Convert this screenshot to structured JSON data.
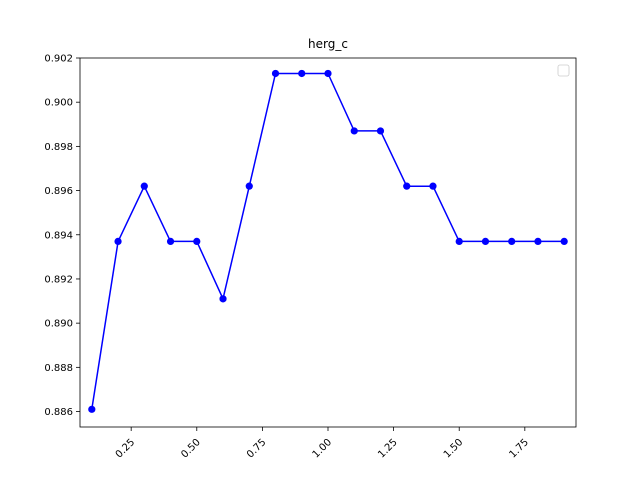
{
  "chart_data": {
    "type": "line",
    "title": "herg_c",
    "xlabel": "",
    "ylabel": "",
    "xlim": [
      0.055,
      1.945
    ],
    "ylim": [
      0.8853,
      0.902
    ],
    "xticks": [
      "0.25",
      "0.50",
      "0.75",
      "1.00",
      "1.25",
      "1.50",
      "1.75"
    ],
    "yticks": [
      "0.886",
      "0.888",
      "0.890",
      "0.892",
      "0.894",
      "0.896",
      "0.898",
      "0.900",
      "0.902"
    ],
    "legend": {
      "placement": "top-right",
      "entries": []
    },
    "grid": false,
    "series": [
      {
        "color": "#0000ff",
        "marker": "circle",
        "x": [
          0.1,
          0.2,
          0.3,
          0.4,
          0.5,
          0.6,
          0.7,
          0.8,
          0.9,
          1.0,
          1.1,
          1.2,
          1.3,
          1.4,
          1.5,
          1.6,
          1.7,
          1.8,
          1.9
        ],
        "y": [
          0.8861,
          0.8937,
          0.8962,
          0.8937,
          0.8937,
          0.8911,
          0.8962,
          0.9013,
          0.9013,
          0.9013,
          0.8987,
          0.8987,
          0.8962,
          0.8962,
          0.8937,
          0.8937,
          0.8937,
          0.8937,
          0.8937
        ]
      }
    ]
  }
}
